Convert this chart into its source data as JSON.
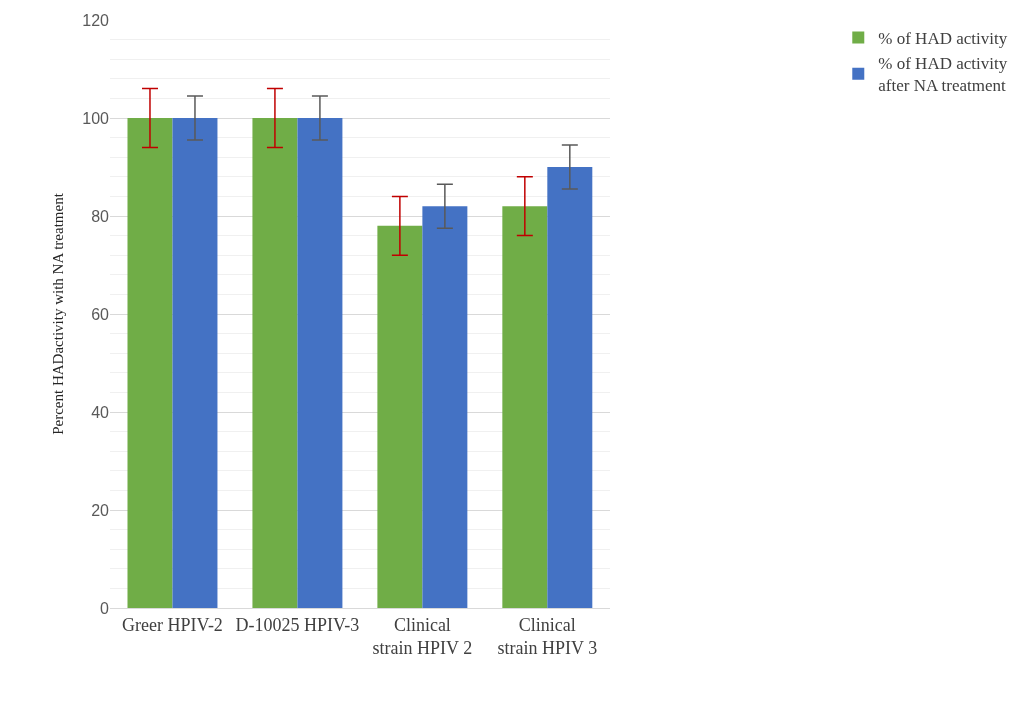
{
  "chart_data": {
    "type": "bar",
    "ylabel": "Percent HADactivity with NA treatment",
    "categories": [
      "Greer HPIV-2",
      "D-10025 HPIV-3",
      "Clinical strain HPIV 2",
      "Clinical strain HPIV 3"
    ],
    "series": [
      {
        "name": "% of HAD activity",
        "color": "#70ad47",
        "values": [
          100,
          100,
          78,
          82
        ],
        "errors": [
          6,
          6,
          6,
          6
        ]
      },
      {
        "name": "% of HAD activity after NA treatment",
        "color": "#4472c4",
        "values": [
          100,
          100,
          82,
          90
        ],
        "errors": [
          4.5,
          4.5,
          4.5,
          4.5
        ]
      }
    ],
    "ylim": [
      0,
      120
    ],
    "yticks": [
      0,
      20,
      40,
      60,
      80,
      100,
      120
    ],
    "grid": "y",
    "legend": "top right"
  }
}
